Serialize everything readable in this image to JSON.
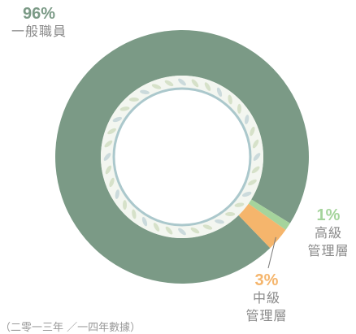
{
  "chart_data": {
    "type": "donut",
    "categories": [
      "一般職員",
      "高級\n管理層",
      "中級\n管理層"
    ],
    "values": [
      96,
      1,
      3
    ],
    "value_labels": [
      "96%",
      "1%",
      "3%"
    ],
    "colors": [
      "#7b9a86",
      "#a5d49c",
      "#f5b56c"
    ],
    "note": "（二零一三年 ／一四年數據）"
  }
}
